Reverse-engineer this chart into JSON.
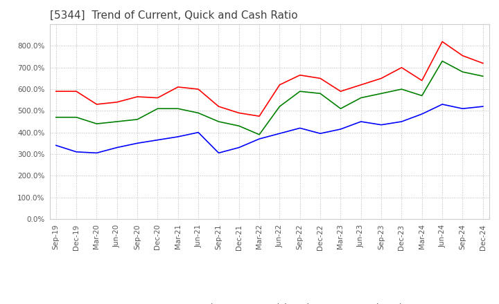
{
  "title": "[5344]  Trend of Current, Quick and Cash Ratio",
  "x_labels": [
    "Sep-19",
    "Dec-19",
    "Mar-20",
    "Jun-20",
    "Sep-20",
    "Dec-20",
    "Mar-21",
    "Jun-21",
    "Sep-21",
    "Dec-21",
    "Mar-22",
    "Jun-22",
    "Sep-22",
    "Dec-22",
    "Mar-23",
    "Jun-23",
    "Sep-23",
    "Dec-23",
    "Mar-24",
    "Jun-24",
    "Sep-24",
    "Dec-24"
  ],
  "current_ratio": [
    590,
    590,
    530,
    540,
    565,
    560,
    610,
    600,
    520,
    490,
    475,
    620,
    665,
    650,
    590,
    620,
    650,
    700,
    640,
    820,
    755,
    720
  ],
  "quick_ratio": [
    470,
    470,
    440,
    450,
    460,
    510,
    510,
    490,
    450,
    430,
    390,
    520,
    590,
    580,
    510,
    560,
    580,
    600,
    570,
    730,
    680,
    660
  ],
  "cash_ratio": [
    340,
    310,
    305,
    330,
    350,
    365,
    380,
    400,
    305,
    330,
    370,
    395,
    420,
    395,
    415,
    450,
    435,
    450,
    485,
    530,
    510,
    520
  ],
  "current_color": "#ff0000",
  "quick_color": "#008000",
  "cash_color": "#0000ff",
  "ylim": [
    0,
    900
  ],
  "yticks": [
    0,
    100,
    200,
    300,
    400,
    500,
    600,
    700,
    800
  ],
  "background_color": "#ffffff",
  "grid_color": "#aaaaaa",
  "title_fontsize": 11,
  "tick_fontsize": 7.5,
  "legend_fontsize": 9,
  "legend_labels": [
    "Current Ratio",
    "Quick Ratio",
    "Cash Ratio"
  ],
  "line_width": 1.2
}
